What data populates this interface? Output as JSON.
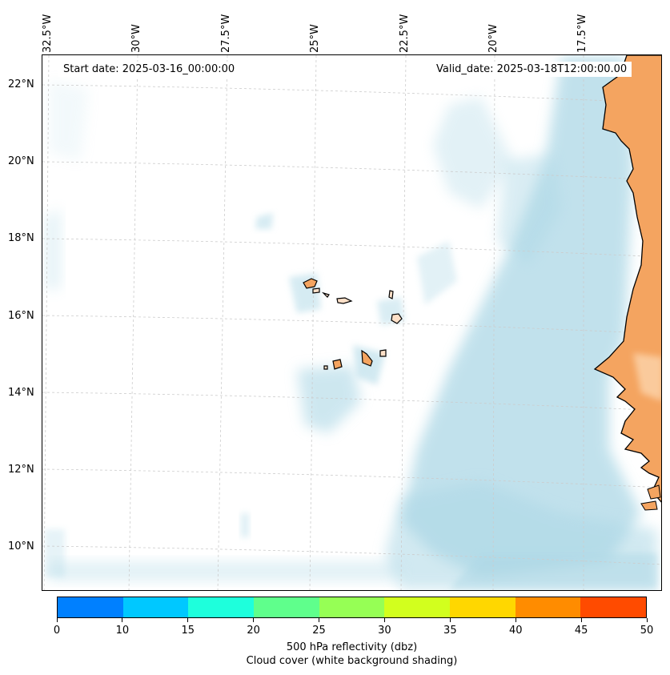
{
  "map": {
    "start_label": "Start date: 2025-03-16_00:00:00",
    "valid_label": "Valid_date: 2025-03-18T12:00:00.00",
    "lon_labels": [
      "32.5°W",
      "30°W",
      "27.5°W",
      "25°W",
      "22.5°W",
      "20°W",
      "17.5°W"
    ],
    "lat_labels": [
      "22°N",
      "20°N",
      "18°N",
      "16°N",
      "14°N",
      "12°N",
      "10°N"
    ],
    "colors": {
      "land": "#f4a460",
      "cloud": "#add8e6",
      "grid": "#cccccc",
      "coast": "#000000"
    }
  },
  "colorbar": {
    "ticks": [
      "0",
      "10",
      "15",
      "20",
      "25",
      "30",
      "35",
      "40",
      "45",
      "50"
    ],
    "colors": [
      "#0080ff",
      "#00c8ff",
      "#1effdc",
      "#5fff8c",
      "#96ff55",
      "#d2ff1e",
      "#ffd700",
      "#ff8c00",
      "#ff4b00"
    ],
    "label": "500 hPa reflectivity (dbz)",
    "sublabel": "Cloud cover (white background shading)"
  }
}
